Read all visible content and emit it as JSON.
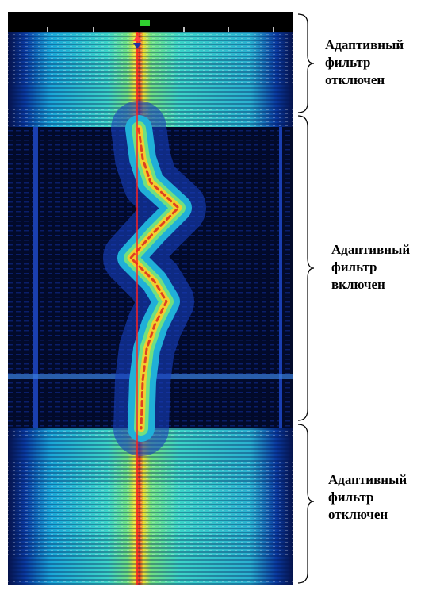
{
  "annotations": [
    {
      "lines": [
        "Адаптивный",
        "фильтр",
        "отключен"
      ]
    },
    {
      "lines": [
        "Адаптивный",
        "фильтр",
        "включен"
      ]
    },
    {
      "lines": [
        "Адаптивный",
        "фильтр",
        "отключен"
      ]
    }
  ]
}
